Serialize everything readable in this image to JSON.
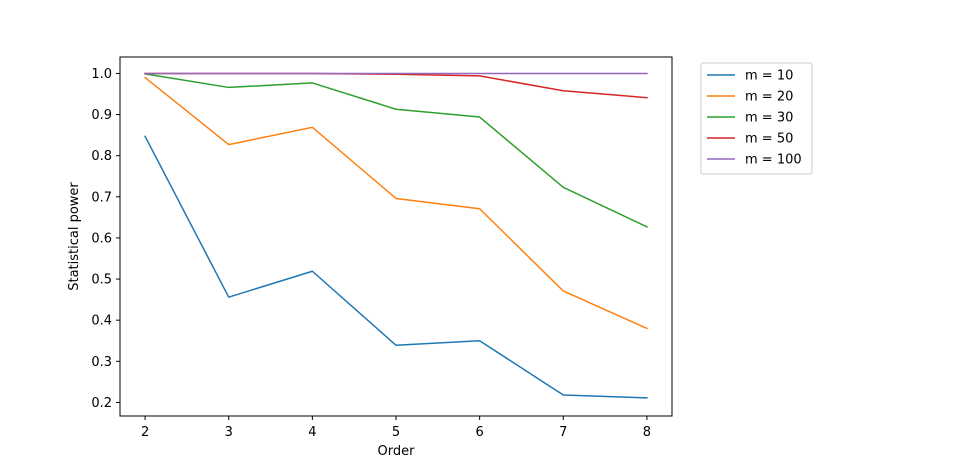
{
  "chart_data": {
    "type": "line",
    "title": "",
    "xlabel": "Order",
    "ylabel": "Statistical power",
    "x": [
      2,
      3,
      4,
      5,
      6,
      7,
      8
    ],
    "xlim": [
      1.7,
      8.3
    ],
    "ylim": [
      0.167,
      1.04
    ],
    "xticks": [
      2,
      3,
      4,
      5,
      6,
      7,
      8
    ],
    "yticks": [
      0.2,
      0.3,
      0.4,
      0.5,
      0.6,
      0.7,
      0.8,
      0.9,
      1.0
    ],
    "ytick_labels": [
      "0.2",
      "0.3",
      "0.4",
      "0.5",
      "0.6",
      "0.7",
      "0.8",
      "0.9",
      "1.0"
    ],
    "grid": false,
    "legend_position": "outside-top-right",
    "series": [
      {
        "name": "m = 10",
        "color": "#1f77b4",
        "values": [
          0.847,
          0.456,
          0.519,
          0.339,
          0.35,
          0.218,
          0.211
        ]
      },
      {
        "name": "m = 20",
        "color": "#ff7f0e",
        "values": [
          0.99,
          0.827,
          0.869,
          0.696,
          0.671,
          0.471,
          0.38
        ]
      },
      {
        "name": "m = 30",
        "color": "#2ca02c",
        "values": [
          0.999,
          0.966,
          0.977,
          0.913,
          0.894,
          0.723,
          0.627
        ]
      },
      {
        "name": "m = 50",
        "color": "#d62728",
        "values": [
          1.0,
          1.0,
          1.0,
          0.998,
          0.994,
          0.958,
          0.941
        ]
      },
      {
        "name": "m = 100",
        "color": "#9467bd",
        "values": [
          1.0,
          1.0,
          1.0,
          1.0,
          1.0,
          1.0,
          1.0
        ]
      }
    ]
  }
}
